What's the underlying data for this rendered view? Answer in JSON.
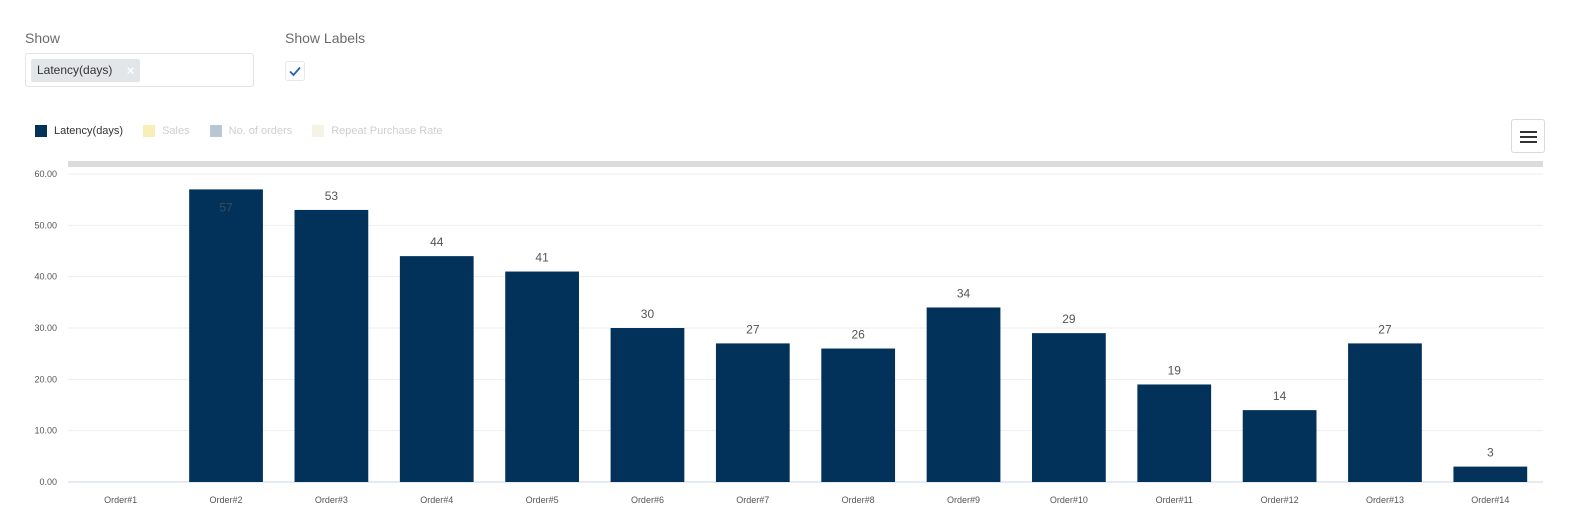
{
  "controls": {
    "show_label": "Show",
    "selected_tag": "Latency(days)",
    "remove_icon": "×",
    "labels_label": "Show Labels",
    "labels_checked": true
  },
  "legend": [
    {
      "label": "Latency(days)",
      "color": "#02325a",
      "active": true
    },
    {
      "label": "Sales",
      "color": "#f7eeb8",
      "active": false
    },
    {
      "label": "No. of orders",
      "color": "#b9c7d3",
      "active": false
    },
    {
      "label": "Repeat Purchase Rate",
      "color": "#f5f3e4",
      "active": false
    }
  ],
  "chart_data": {
    "type": "bar",
    "categories": [
      "Order#1",
      "Order#2",
      "Order#3",
      "Order#4",
      "Order#5",
      "Order#6",
      "Order#7",
      "Order#8",
      "Order#9",
      "Order#10",
      "Order#11",
      "Order#12",
      "Order#13",
      "Order#14"
    ],
    "series": [
      {
        "name": "Latency(days)",
        "values": [
          0,
          57,
          53,
          44,
          41,
          30,
          27,
          26,
          34,
          29,
          19,
          14,
          27,
          3
        ],
        "color": "#02325a"
      }
    ],
    "value_labels": [
      "",
      "57",
      "53",
      "44",
      "41",
      "30",
      "27",
      "26",
      "34",
      "29",
      "19",
      "14",
      "27",
      "3"
    ],
    "ylim": [
      0,
      60
    ],
    "yticks": [
      "0.00",
      "10.00",
      "20.00",
      "30.00",
      "40.00",
      "50.00",
      "60.00"
    ],
    "grid": true
  }
}
